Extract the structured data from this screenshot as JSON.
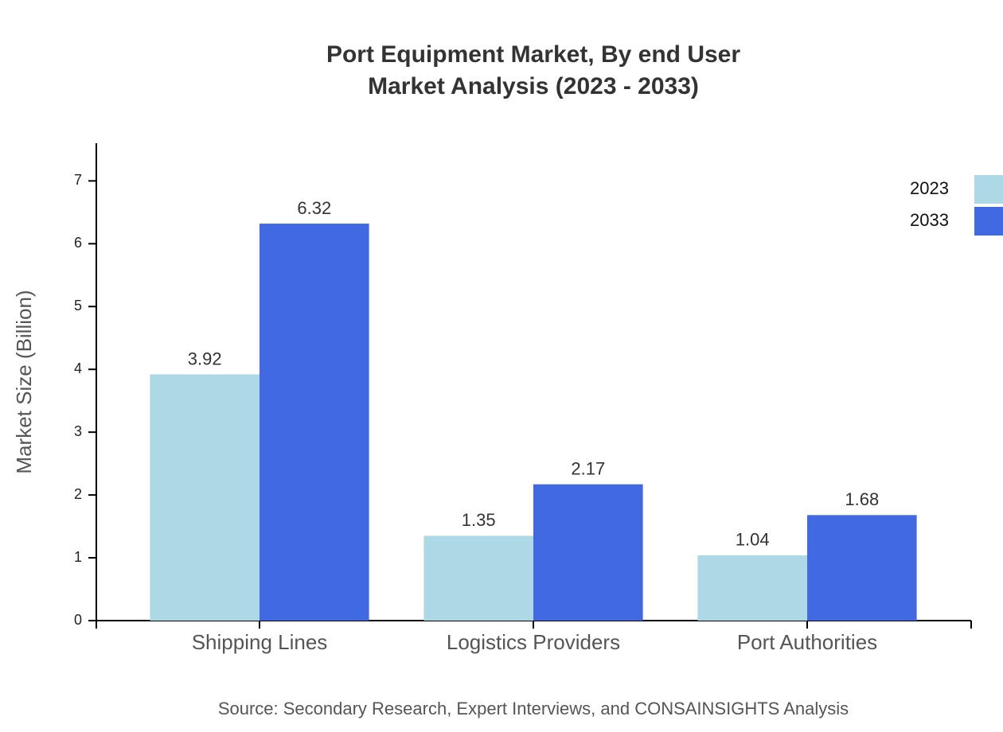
{
  "chart_data": {
    "type": "bar",
    "title": [
      "Port Equipment Market, By end User",
      "Market Analysis (2023 - 2033)"
    ],
    "y_label": "Market Size (Billion)",
    "source": "Source: Secondary Research, Expert Interviews, and CONSAINSIGHTS Analysis",
    "categories": [
      "Shipping Lines",
      "Logistics Providers",
      "Port Authorities"
    ],
    "series": [
      {
        "name": "2023",
        "color": "#add8e6",
        "values": [
          3.92,
          1.35,
          1.04
        ]
      },
      {
        "name": "2033",
        "color": "#4169e1",
        "values": [
          6.32,
          2.17,
          1.68
        ]
      }
    ],
    "ylim": [
      0,
      7.6
    ],
    "yticks": [
      0,
      1,
      2,
      3,
      4,
      5,
      6,
      7
    ],
    "legend": "top-right",
    "grid": false
  }
}
